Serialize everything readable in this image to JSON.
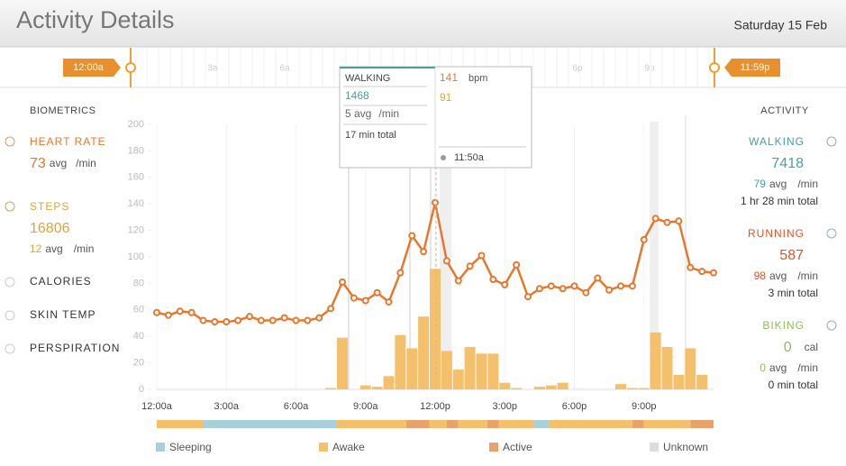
{
  "header": {
    "title": "Activity Details",
    "date": "Saturday 15 Feb"
  },
  "timeline": {
    "start": "12:00a",
    "end": "11:59p",
    "labels": [
      "3a",
      "6a",
      "6p",
      "9p"
    ]
  },
  "biometrics": {
    "title": "BIOMETRICS",
    "heart_rate": {
      "label": "HEART RATE",
      "value": 73,
      "avg": "avg",
      "unit": "/min"
    },
    "steps": {
      "label": "STEPS",
      "value": 16806,
      "avg_value": 12,
      "avg": "avg",
      "unit": "/min"
    },
    "others": [
      "CALORIES",
      "SKIN TEMP",
      "PERSPIRATION"
    ]
  },
  "activity": {
    "title": "ACTIVITY",
    "walking": {
      "label": "WALKING",
      "value": 7418,
      "avg_value": 79,
      "avg": "avg",
      "unit": "/min",
      "total": "1 hr 28 min total"
    },
    "running": {
      "label": "RUNNING",
      "value": 587,
      "avg_value": 98,
      "avg": "avg",
      "unit": "/min",
      "total": "3 min total"
    },
    "biking": {
      "label": "BIKING",
      "value": 0,
      "value_unit": "cal",
      "avg_value": 0,
      "avg": "avg",
      "unit": "/min",
      "total": "0 min total"
    }
  },
  "tooltip": {
    "activity": "WALKING",
    "steps": 1468,
    "avg": "5 avg",
    "unit": "/min",
    "total": "17 min total",
    "bpm_value": 141,
    "bpm": "bpm",
    "cadence": 91,
    "time": "11:50a"
  },
  "chart_data": {
    "type": "combo",
    "x": [
      0,
      0.5,
      1,
      1.5,
      2,
      2.5,
      3,
      3.5,
      4,
      4.5,
      5,
      5.5,
      6,
      6.5,
      7,
      7.5,
      8,
      8.5,
      9,
      9.5,
      10,
      10.5,
      11,
      11.5,
      12,
      12.5,
      13,
      13.5,
      14,
      14.5,
      15,
      15.5,
      16,
      16.5,
      17,
      17.5,
      18,
      18.5,
      19,
      19.5,
      20,
      20.5,
      21,
      21.5,
      22,
      22.5,
      23,
      23.5,
      24
    ],
    "xlim": [
      0,
      24
    ],
    "xticks": [
      {
        "value": 0,
        "label": "12:00a"
      },
      {
        "value": 3,
        "label": "3:00a"
      },
      {
        "value": 6,
        "label": "6:00a"
      },
      {
        "value": 9,
        "label": "9:00a"
      },
      {
        "value": 12,
        "label": "12:00p"
      },
      {
        "value": 15,
        "label": "3:00p"
      },
      {
        "value": 18,
        "label": "6:00p"
      },
      {
        "value": 21,
        "label": "9:00p"
      }
    ],
    "ylim": [
      0,
      200
    ],
    "yticks": [
      0,
      20,
      40,
      60,
      80,
      100,
      120,
      140,
      160,
      180,
      200
    ],
    "series": [
      {
        "type": "bar",
        "color": "#f5c06b",
        "values": [
          0,
          0,
          0,
          0,
          0,
          0,
          0,
          0,
          0,
          0,
          0,
          0,
          0,
          0,
          0,
          1,
          39,
          0,
          3,
          2,
          10,
          41,
          31,
          55,
          91,
          29,
          15,
          32,
          27,
          27,
          5,
          1,
          0,
          2,
          3,
          5,
          0,
          0,
          0,
          0,
          4,
          1,
          1,
          43,
          32,
          11,
          31,
          11,
          0
        ]
      },
      {
        "type": "line",
        "color": "#e8772e",
        "values": [
          58,
          56,
          59,
          58,
          52,
          51,
          51,
          52,
          55,
          52,
          52,
          54,
          52,
          52,
          54,
          61,
          81,
          69,
          67,
          73,
          66,
          88,
          116,
          104,
          141,
          97,
          82,
          93,
          101,
          83,
          79,
          94,
          70,
          76,
          78,
          76,
          78,
          73,
          84,
          75,
          78,
          78,
          113,
          129,
          126,
          127,
          92,
          89,
          88
        ]
      }
    ]
  },
  "activity_strip": {
    "segments": [
      {
        "from": 0,
        "to": 2,
        "kind": 1
      },
      {
        "from": 2,
        "to": 7.75,
        "kind": 0
      },
      {
        "from": 7.75,
        "to": 10.75,
        "kind": 1
      },
      {
        "from": 10.75,
        "to": 11.75,
        "kind": 2
      },
      {
        "from": 11.75,
        "to": 12.5,
        "kind": 1
      },
      {
        "from": 12.5,
        "to": 13,
        "kind": 2
      },
      {
        "from": 13,
        "to": 14.25,
        "kind": 1
      },
      {
        "from": 14.25,
        "to": 14.75,
        "kind": 2
      },
      {
        "from": 14.75,
        "to": 16.25,
        "kind": 1
      },
      {
        "from": 16.25,
        "to": 16.9,
        "kind": 0
      },
      {
        "from": 16.9,
        "to": 20.5,
        "kind": 1
      },
      {
        "from": 20.5,
        "to": 21,
        "kind": 2
      },
      {
        "from": 21,
        "to": 23,
        "kind": 1
      },
      {
        "from": 23,
        "to": 24,
        "kind": 2
      }
    ]
  },
  "legend": [
    {
      "label": "Sleeping",
      "color": "#a7d0db"
    },
    {
      "label": "Awake",
      "color": "#f5c06b"
    },
    {
      "label": "Active",
      "color": "#e9a36a"
    },
    {
      "label": "Unknown",
      "color": "#dddddd"
    }
  ]
}
